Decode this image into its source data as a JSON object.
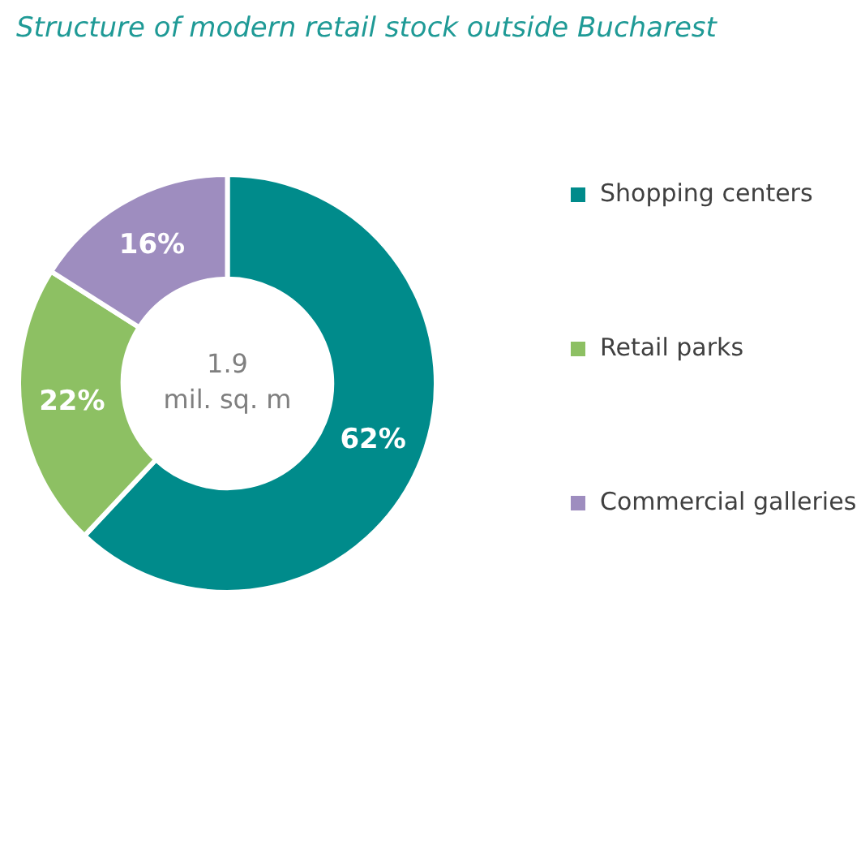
{
  "chart_data": {
    "type": "donut",
    "title": "Structure of modern retail stock outside Bucharest",
    "categories": [
      "Shopping centers",
      "Retail parks",
      "Commercial galleries"
    ],
    "values": [
      62,
      22,
      16
    ],
    "colors": [
      "#008b8b",
      "#8dc063",
      "#9e8dbf"
    ],
    "value_labels": [
      "62%",
      "22%",
      "16%"
    ],
    "legend": "right",
    "annotations": [
      "1.9",
      "mil. sq. m"
    ]
  }
}
